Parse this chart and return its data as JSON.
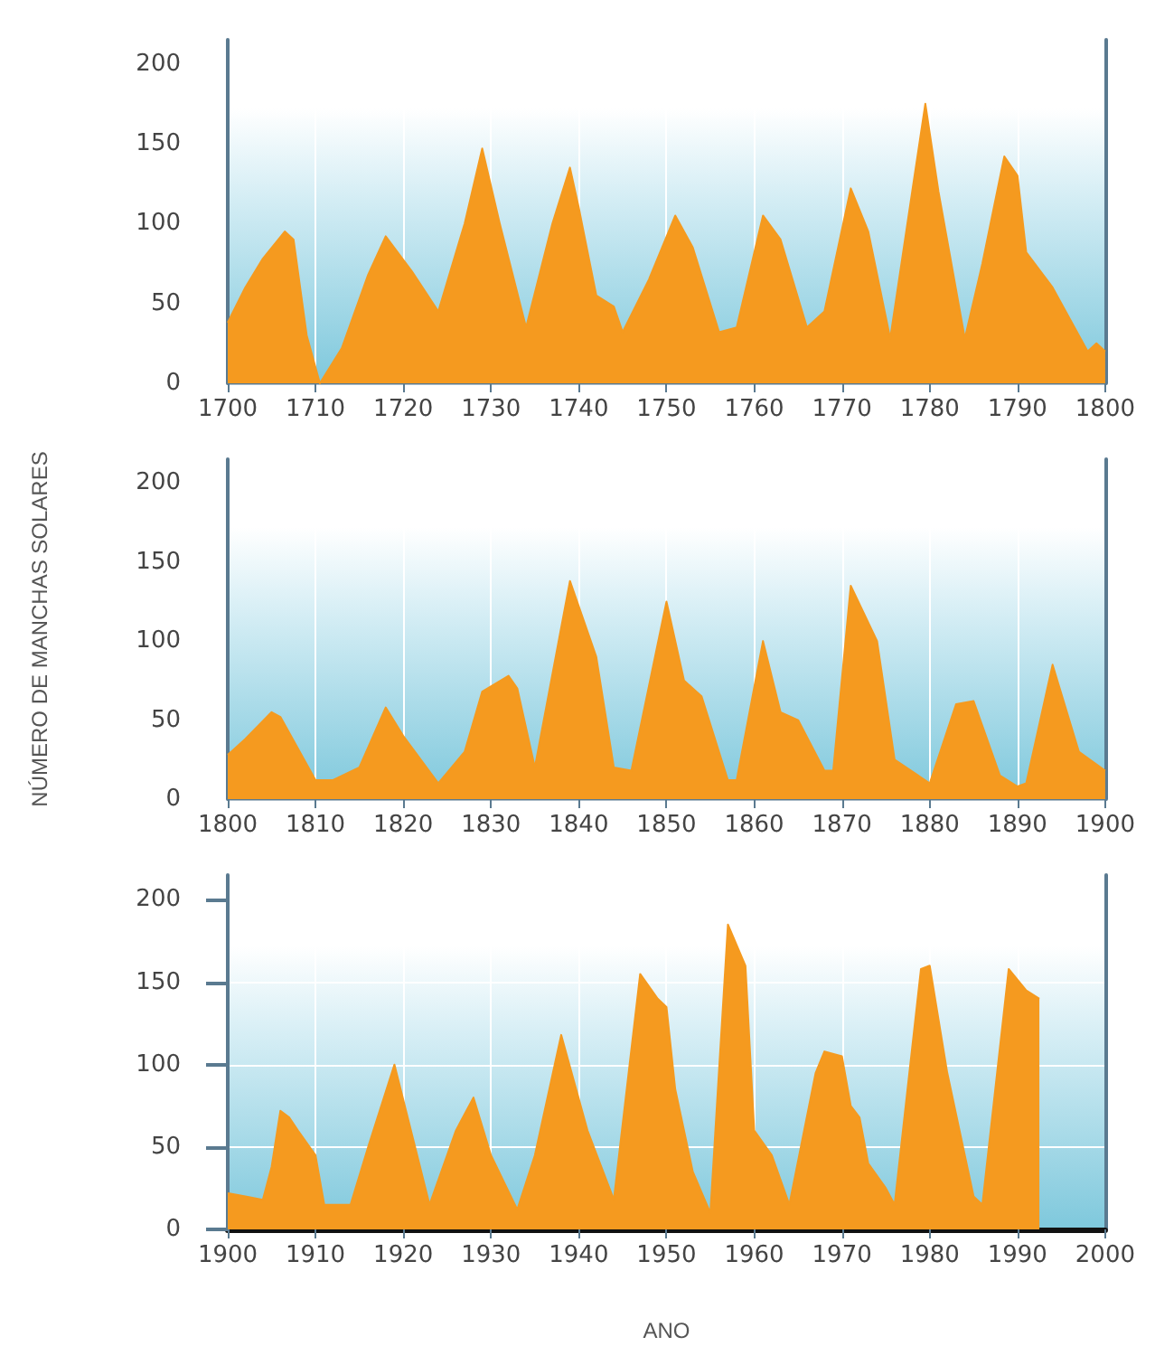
{
  "chart_data": [
    {
      "type": "area",
      "x": [
        1700,
        1702,
        1704,
        1706.5,
        1707.5,
        1709,
        1710.5,
        1713,
        1716,
        1718,
        1721,
        1724,
        1727,
        1729,
        1731,
        1734,
        1737,
        1739,
        1740,
        1742,
        1744,
        1745,
        1748,
        1751,
        1753,
        1756,
        1758,
        1761,
        1763,
        1766,
        1768,
        1771,
        1773,
        1775.5,
        1778,
        1779.5,
        1781,
        1784,
        1786,
        1788.5,
        1790,
        1791,
        1794,
        1798,
        1799,
        1800
      ],
      "series": [
        {
          "color": "#f59a1f",
          "values": [
            38,
            60,
            78,
            95,
            90,
            30,
            0,
            22,
            68,
            92,
            70,
            45,
            100,
            147,
            100,
            35,
            100,
            135,
            110,
            55,
            48,
            32,
            65,
            105,
            85,
            32,
            35,
            105,
            90,
            35,
            45,
            122,
            95,
            28,
            120,
            175,
            120,
            28,
            75,
            142,
            130,
            82,
            60,
            20,
            25,
            20
          ]
        }
      ],
      "xlim": [
        1700,
        1800
      ],
      "ylim": [
        0,
        215
      ],
      "xticks": [
        1700,
        1710,
        1720,
        1730,
        1740,
        1750,
        1760,
        1770,
        1780,
        1790,
        1800
      ],
      "yticks": [
        0,
        50,
        100,
        150,
        200
      ],
      "grid": "x"
    },
    {
      "type": "area",
      "x": [
        1800,
        1802,
        1805,
        1806,
        1810,
        1812,
        1815,
        1818,
        1820,
        1824,
        1827,
        1829,
        1832,
        1833,
        1835,
        1839,
        1842,
        1844,
        1846,
        1850,
        1852,
        1854,
        1857,
        1858,
        1861,
        1863,
        1865,
        1868,
        1869,
        1871,
        1874,
        1876,
        1880,
        1883,
        1885,
        1888,
        1890,
        1891,
        1894,
        1897,
        1900
      ],
      "series": [
        {
          "color": "#f59a1f",
          "values": [
            28,
            38,
            55,
            52,
            12,
            12,
            20,
            58,
            40,
            10,
            30,
            68,
            78,
            70,
            20,
            138,
            90,
            20,
            18,
            125,
            75,
            65,
            12,
            12,
            100,
            55,
            50,
            18,
            18,
            135,
            100,
            25,
            10,
            60,
            62,
            15,
            8,
            10,
            85,
            30,
            18
          ]
        }
      ],
      "xlim": [
        1800,
        1900
      ],
      "ylim": [
        0,
        215
      ],
      "xticks": [
        1800,
        1810,
        1820,
        1830,
        1840,
        1850,
        1860,
        1870,
        1880,
        1890,
        1900
      ],
      "yticks": [
        0,
        50,
        100,
        150,
        200
      ],
      "ylabel": "NÚMERO DE MANCHAS SOLARES",
      "grid": "x"
    },
    {
      "type": "area",
      "x": [
        1900,
        1902,
        1904,
        1905,
        1906,
        1907,
        1908,
        1910,
        1911,
        1914,
        1916,
        1919,
        1923,
        1926,
        1928,
        1930,
        1933,
        1935,
        1938,
        1941,
        1944,
        1947,
        1949,
        1950,
        1951,
        1953,
        1955,
        1957,
        1959,
        1960,
        1962,
        1964,
        1967,
        1968,
        1970,
        1971,
        1972,
        1973,
        1975,
        1976,
        1979,
        1980,
        1982,
        1985,
        1986,
        1989,
        1991,
        1992.5
      ],
      "series": [
        {
          "color": "#f59a1f",
          "values": [
            22,
            20,
            18,
            38,
            72,
            68,
            60,
            45,
            15,
            15,
            50,
            100,
            15,
            60,
            80,
            45,
            12,
            45,
            118,
            60,
            18,
            155,
            140,
            135,
            85,
            35,
            10,
            185,
            160,
            60,
            45,
            15,
            95,
            108,
            105,
            75,
            68,
            40,
            25,
            15,
            158,
            160,
            95,
            20,
            15,
            158,
            145,
            140
          ]
        }
      ],
      "xlim": [
        1900,
        2000
      ],
      "ylim": [
        0,
        215
      ],
      "xticks": [
        1900,
        1910,
        1920,
        1930,
        1940,
        1950,
        1960,
        1970,
        1980,
        1990,
        2000
      ],
      "yticks": [
        0,
        50,
        100,
        150,
        200
      ],
      "xlabel": "ANO",
      "grid": true
    }
  ]
}
